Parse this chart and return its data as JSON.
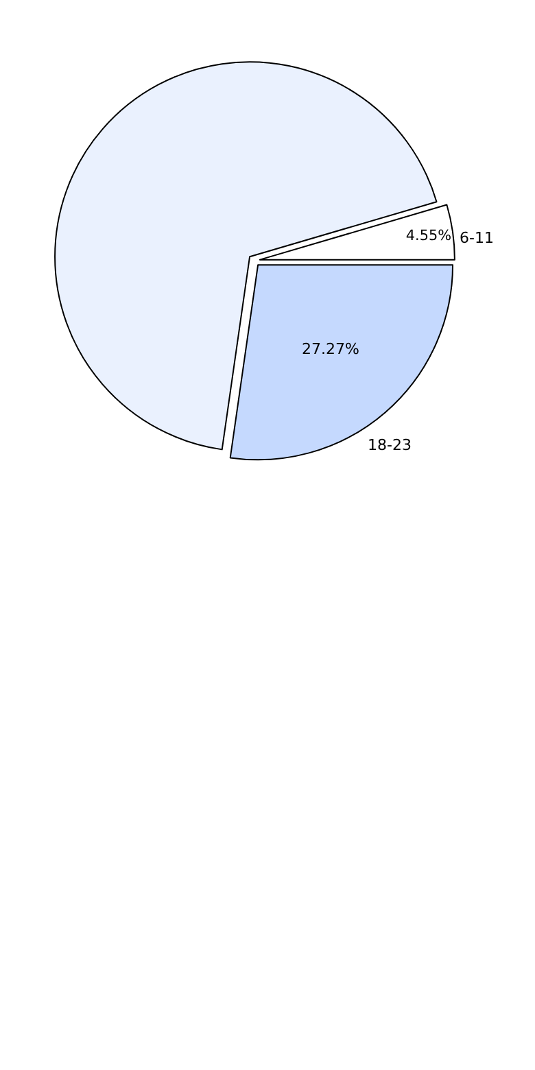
{
  "chart_data": {
    "type": "pie",
    "categories": [
      "6-11",
      null,
      "18-23"
    ],
    "values": [
      4.55,
      68.18,
      27.27
    ],
    "colors": [
      "#ffffff",
      "#eaf1fe",
      "#c5d9fe"
    ],
    "value_labels": [
      "4.55%",
      null,
      "27.27%"
    ]
  }
}
